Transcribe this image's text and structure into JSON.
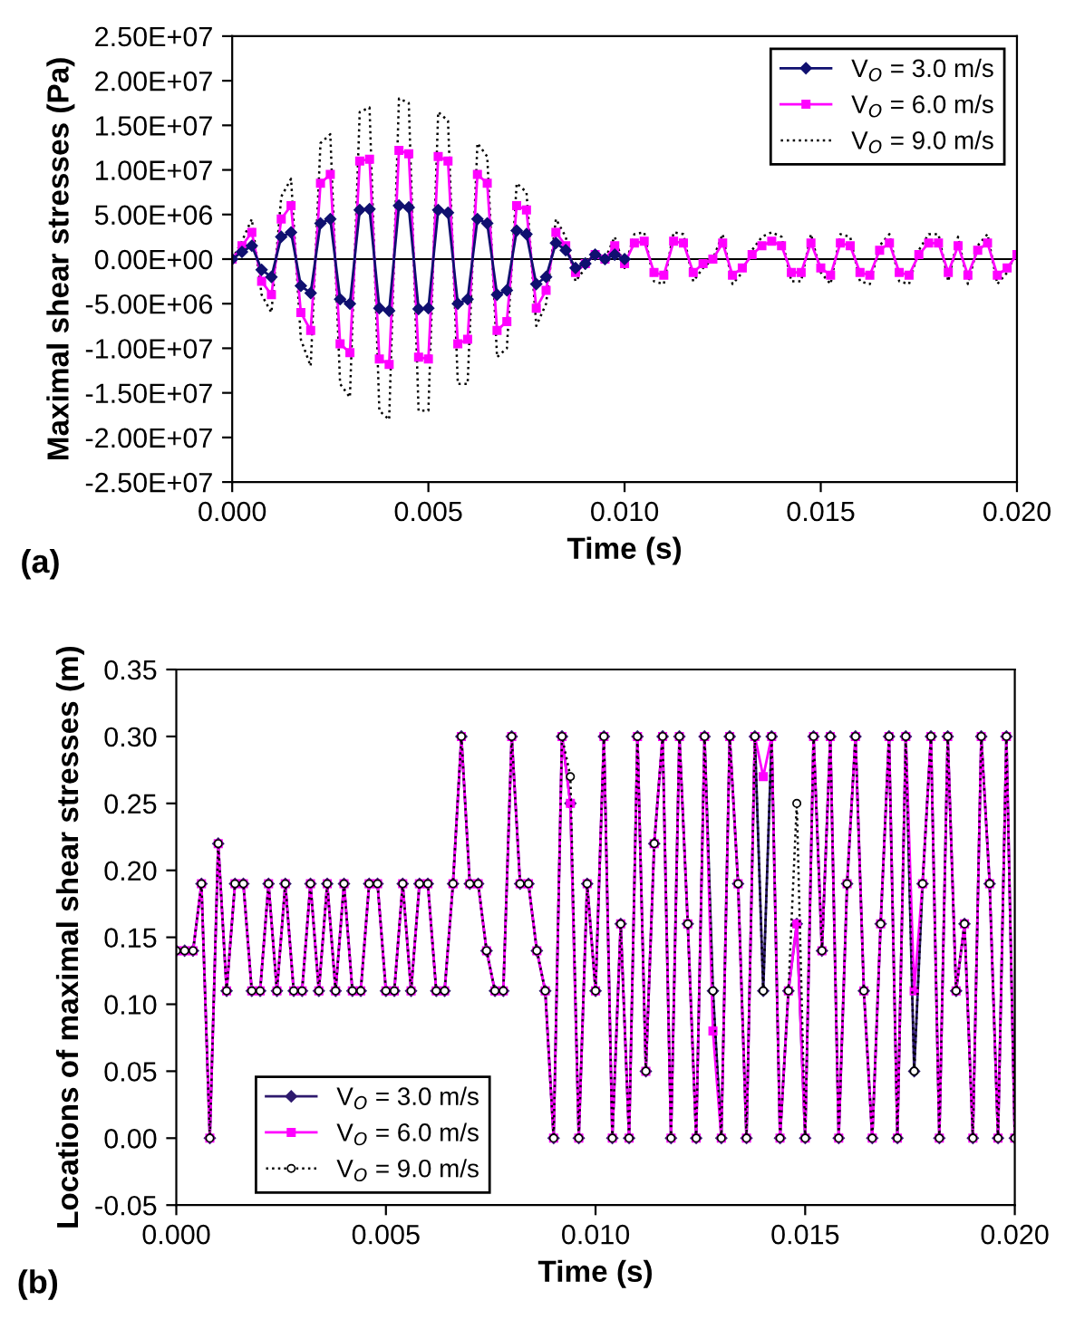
{
  "chart_data": [
    {
      "type": "line",
      "xlabel": "Time (s)",
      "ylabel": "Maximal shear stresses (Pa)",
      "annotations": [
        "(a)"
      ],
      "legend": "top right",
      "grid": false,
      "ref_lines": [
        {
          "axis": "y",
          "value": 0,
          "color": "#000000",
          "line_style": "solid"
        }
      ],
      "xlim": [
        0,
        0.02
      ],
      "xticks": [
        {
          "value": 0,
          "label": "0.000"
        },
        {
          "value": 0.005,
          "label": "0.005"
        },
        {
          "value": 0.01,
          "label": "0.010"
        },
        {
          "value": 0.015,
          "label": "0.015"
        },
        {
          "value": 0.02,
          "label": "0.020"
        }
      ],
      "ylim": [
        -25000000,
        25000000
      ],
      "yticks": [
        {
          "value": 25000000,
          "label": "2.50E+07"
        },
        {
          "value": 20000000,
          "label": "2.00E+07"
        },
        {
          "value": 15000000,
          "label": "1.50E+07"
        },
        {
          "value": 10000000,
          "label": "1.00E+07"
        },
        {
          "value": 5000000,
          "label": "5.00E+06"
        },
        {
          "value": 0,
          "label": "0.00E+00"
        },
        {
          "value": -5000000,
          "label": "-5.00E+06"
        },
        {
          "value": -10000000,
          "label": "-1.00E+07"
        },
        {
          "value": -15000000,
          "label": "-1.50E+07"
        },
        {
          "value": -20000000,
          "label": "-2.00E+07"
        },
        {
          "value": -25000000,
          "label": "-2.50E+07"
        }
      ],
      "x": [
        0,
        0.00025,
        0.0005,
        0.00075,
        0.001,
        0.00125,
        0.0015,
        0.00175,
        0.002,
        0.00225,
        0.0025,
        0.00275,
        0.003,
        0.00325,
        0.0035,
        0.00375,
        0.004,
        0.00425,
        0.0045,
        0.00475,
        0.005,
        0.00525,
        0.0055,
        0.00575,
        0.006,
        0.00625,
        0.0065,
        0.00675,
        0.007,
        0.00725,
        0.0075,
        0.00775,
        0.008,
        0.00825,
        0.0085,
        0.00875,
        0.009,
        0.00925,
        0.0095,
        0.00975,
        0.01,
        0.01025,
        0.0105,
        0.01075,
        0.011,
        0.01125,
        0.0115,
        0.01175,
        0.012,
        0.01225,
        0.0125,
        0.01275,
        0.013,
        0.01325,
        0.0135,
        0.01375,
        0.014,
        0.01425,
        0.0145,
        0.01475,
        0.015,
        0.01525,
        0.0155,
        0.01575,
        0.016,
        0.01625,
        0.0165,
        0.01675,
        0.017,
        0.01725,
        0.0175,
        0.01775,
        0.018,
        0.01825,
        0.0185,
        0.01875,
        0.019,
        0.01925,
        0.0195,
        0.01975,
        0.02
      ],
      "series": [
        {
          "name": "V$_{O}$ = 9.0 m/s",
          "color": "#000000",
          "line_style": "dotted",
          "marker": "none",
          "values": [
            0,
            2000000,
            4500000,
            -4000000,
            -6000000,
            7000000,
            9000000,
            -9000000,
            -12000000,
            13000000,
            14000000,
            -14000000,
            -15500000,
            16500000,
            17000000,
            -17000000,
            -18000000,
            18000000,
            17500000,
            -17000000,
            -17000000,
            16500000,
            15500000,
            -14000000,
            -14000000,
            13000000,
            11500000,
            -11000000,
            -10000000,
            8500000,
            7500000,
            -7500000,
            -5000000,
            4500000,
            2500000,
            -2500000,
            -1000000,
            1000000,
            0,
            2500000,
            -1000000,
            2800000,
            3000000,
            -2500000,
            -2800000,
            3000000,
            2800000,
            -2500000,
            -1000000,
            0,
            2800000,
            -2800000,
            -1500000,
            1000000,
            2500000,
            3000000,
            2500000,
            -2500000,
            -2500000,
            2800000,
            -1500000,
            -2800000,
            2800000,
            2500000,
            -2500000,
            -2800000,
            1500000,
            2800000,
            -2500000,
            -2800000,
            1000000,
            2800000,
            2800000,
            -2500000,
            2500000,
            -2800000,
            1500000,
            2800000,
            -2800000,
            -1500000,
            1000000
          ]
        },
        {
          "name": "V$_{O}$ = 6.0 m/s",
          "color": "#ff00ff",
          "line_style": "solid",
          "marker": "square",
          "values": [
            0,
            1500000,
            3000000,
            -2500000,
            -4000000,
            4500000,
            6000000,
            -6000000,
            -8000000,
            8500000,
            9500000,
            -9500000,
            -10500000,
            11000000,
            11200000,
            -11200000,
            -11800000,
            12200000,
            11800000,
            -11000000,
            -11200000,
            11500000,
            11000000,
            -9500000,
            -9000000,
            9500000,
            8500000,
            -8000000,
            -7000000,
            6000000,
            5500000,
            -5500000,
            -3500000,
            3000000,
            1500000,
            -1500000,
            -500000,
            500000,
            0,
            1500000,
            -500000,
            1800000,
            2000000,
            -1500000,
            -1800000,
            2000000,
            1800000,
            -1500000,
            -500000,
            0,
            1800000,
            -1800000,
            -1000000,
            500000,
            1500000,
            2000000,
            1500000,
            -1500000,
            -1500000,
            1800000,
            -1000000,
            -1800000,
            1800000,
            1500000,
            -1500000,
            -1800000,
            1000000,
            1800000,
            -1500000,
            -1800000,
            500000,
            1800000,
            1800000,
            -1500000,
            1500000,
            -1800000,
            1000000,
            1800000,
            -1800000,
            -1000000,
            500000
          ]
        },
        {
          "name": "V$_{O}$ = 3.0 m/s",
          "color": "#101070",
          "line_style": "solid",
          "marker": "diamond",
          "x": [
            0,
            0.00025,
            0.0005,
            0.00075,
            0.001,
            0.00125,
            0.0015,
            0.00175,
            0.002,
            0.00225,
            0.0025,
            0.00275,
            0.003,
            0.00325,
            0.0035,
            0.00375,
            0.004,
            0.00425,
            0.0045,
            0.00475,
            0.005,
            0.00525,
            0.0055,
            0.00575,
            0.006,
            0.00625,
            0.0065,
            0.00675,
            0.007,
            0.00725,
            0.0075,
            0.00775,
            0.008,
            0.00825,
            0.0085,
            0.00875,
            0.009,
            0.00925,
            0.0095,
            0.00975,
            0.01
          ],
          "values": [
            0,
            800000,
            1500000,
            -1200000,
            -2000000,
            2500000,
            3000000,
            -3000000,
            -3800000,
            4000000,
            4500000,
            -4500000,
            -5000000,
            5500000,
            5600000,
            -5500000,
            -5800000,
            6000000,
            5800000,
            -5600000,
            -5500000,
            5500000,
            5200000,
            -5000000,
            -4500000,
            4500000,
            4000000,
            -4000000,
            -3500000,
            3200000,
            2800000,
            -2800000,
            -2000000,
            1800000,
            1000000,
            -1000000,
            -500000,
            500000,
            0,
            500000,
            0
          ]
        }
      ]
    },
    {
      "type": "line",
      "xlabel": "Time (s)",
      "ylabel": "Locations of maximal shear stresses (m)",
      "annotations": [
        "(b)"
      ],
      "legend": "bottom left",
      "grid": false,
      "xlim": [
        0,
        0.02
      ],
      "xticks": [
        {
          "value": 0,
          "label": "0.000"
        },
        {
          "value": 0.005,
          "label": "0.005"
        },
        {
          "value": 0.01,
          "label": "0.010"
        },
        {
          "value": 0.015,
          "label": "0.015"
        },
        {
          "value": 0.02,
          "label": "0.020"
        }
      ],
      "ylim": [
        -0.05,
        0.35
      ],
      "yticks": [
        {
          "value": -0.05,
          "label": "-0.05"
        },
        {
          "value": 0,
          "label": "0.00"
        },
        {
          "value": 0.05,
          "label": "0.05"
        },
        {
          "value": 0.1,
          "label": "0.10"
        },
        {
          "value": 0.15,
          "label": "0.15"
        },
        {
          "value": 0.2,
          "label": "0.20"
        },
        {
          "value": 0.25,
          "label": "0.25"
        },
        {
          "value": 0.3,
          "label": "0.30"
        },
        {
          "value": 0.35,
          "label": "0.35"
        }
      ],
      "x": [
        0,
        0.0002,
        0.0004,
        0.0006,
        0.0008,
        0.001,
        0.0012,
        0.0014,
        0.0016,
        0.0018,
        0.002,
        0.0022,
        0.0024,
        0.0026,
        0.0028,
        0.003,
        0.0032,
        0.0034,
        0.0036,
        0.0038,
        0.004,
        0.0042,
        0.0044,
        0.0046,
        0.0048,
        0.005,
        0.0052,
        0.0054,
        0.0056,
        0.0058,
        0.006,
        0.0062,
        0.0064,
        0.0066,
        0.0068,
        0.007,
        0.0072,
        0.0074,
        0.0076,
        0.0078,
        0.008,
        0.0082,
        0.0084,
        0.0086,
        0.0088,
        0.009,
        0.0092,
        0.0094,
        0.0096,
        0.0098,
        0.01,
        0.0102,
        0.0104,
        0.0106,
        0.0108,
        0.011,
        0.0112,
        0.0114,
        0.0116,
        0.0118,
        0.012,
        0.0122,
        0.0124,
        0.0126,
        0.0128,
        0.013,
        0.0132,
        0.0134,
        0.0136,
        0.0138,
        0.014,
        0.0142,
        0.0144,
        0.0146,
        0.0148,
        0.015,
        0.0152,
        0.0154,
        0.0156,
        0.0158,
        0.016,
        0.0162,
        0.0164,
        0.0166,
        0.0168,
        0.017,
        0.0172,
        0.0174,
        0.0176,
        0.0178,
        0.018,
        0.0182,
        0.0184,
        0.0186,
        0.0188,
        0.019,
        0.0192,
        0.0194,
        0.0196,
        0.0198,
        0.02
      ],
      "series": [
        {
          "name": "V$_{O}$ = 3.0 m/s",
          "color": "#2e1a6e",
          "line_style": "solid",
          "marker": "diamond",
          "values": [
            0.14,
            0.14,
            0.14,
            0.19,
            0.0,
            0.22,
            0.11,
            0.19,
            0.19,
            0.11,
            0.11,
            0.19,
            0.11,
            0.19,
            0.11,
            0.11,
            0.19,
            0.11,
            0.19,
            0.11,
            0.19,
            0.11,
            0.11,
            0.19,
            0.19,
            0.11,
            0.11,
            0.19,
            0.11,
            0.19,
            0.19,
            0.11,
            0.11,
            0.19,
            0.3,
            0.19,
            0.19,
            0.14,
            0.11,
            0.11,
            0.3,
            0.19,
            0.19,
            0.14,
            0.11,
            0.0,
            0.3,
            0.25,
            0.0,
            0.19,
            0.11,
            0.3,
            0.0,
            0.16,
            0.0,
            0.3,
            0.05,
            0.22,
            0.3,
            0.0,
            0.3,
            0.16,
            0.0,
            0.3,
            0.11,
            0.0,
            0.3,
            0.19,
            0.0,
            0.3,
            0.11,
            0.3,
            0.0,
            0.11,
            0.16,
            0.0,
            0.3,
            0.14,
            0.3,
            0.0,
            0.19,
            0.3,
            0.11,
            0.0,
            0.16,
            0.3,
            0.0,
            0.3,
            0.05,
            0.19,
            0.3,
            0.0,
            0.3,
            0.11,
            0.16,
            0.0,
            0.3,
            0.19,
            0.0,
            0.3,
            0.0
          ]
        },
        {
          "name": "V$_{O}$ = 6.0 m/s",
          "color": "#ff00ff",
          "line_style": "solid",
          "marker": "square",
          "values": [
            0.14,
            0.14,
            0.14,
            0.19,
            0.0,
            0.22,
            0.11,
            0.19,
            0.19,
            0.11,
            0.11,
            0.19,
            0.11,
            0.19,
            0.11,
            0.11,
            0.19,
            0.11,
            0.19,
            0.11,
            0.19,
            0.11,
            0.11,
            0.19,
            0.19,
            0.11,
            0.11,
            0.19,
            0.11,
            0.19,
            0.19,
            0.11,
            0.11,
            0.19,
            0.3,
            0.19,
            0.19,
            0.14,
            0.11,
            0.11,
            0.3,
            0.19,
            0.19,
            0.14,
            0.11,
            0.0,
            0.3,
            0.25,
            0.0,
            0.19,
            0.11,
            0.3,
            0.0,
            0.16,
            0.0,
            0.3,
            0.05,
            0.22,
            0.3,
            0.0,
            0.3,
            0.16,
            0.0,
            0.3,
            0.08,
            0.0,
            0.3,
            0.19,
            0.0,
            0.3,
            0.27,
            0.3,
            0.0,
            0.11,
            0.16,
            0.0,
            0.3,
            0.14,
            0.3,
            0.0,
            0.19,
            0.3,
            0.11,
            0.0,
            0.16,
            0.3,
            0.0,
            0.3,
            0.11,
            0.19,
            0.3,
            0.0,
            0.3,
            0.11,
            0.16,
            0.0,
            0.3,
            0.19,
            0.0,
            0.3,
            0.0
          ]
        },
        {
          "name": "V$_{O}$ = 9.0 m/s",
          "color": "#000000",
          "line_style": "dotted",
          "marker": "circle",
          "values": [
            0.14,
            0.14,
            0.14,
            0.19,
            0.0,
            0.22,
            0.11,
            0.19,
            0.19,
            0.11,
            0.11,
            0.19,
            0.11,
            0.19,
            0.11,
            0.11,
            0.19,
            0.11,
            0.19,
            0.11,
            0.19,
            0.11,
            0.11,
            0.19,
            0.19,
            0.11,
            0.11,
            0.19,
            0.11,
            0.19,
            0.19,
            0.11,
            0.11,
            0.19,
            0.3,
            0.19,
            0.19,
            0.14,
            0.11,
            0.11,
            0.3,
            0.19,
            0.19,
            0.14,
            0.11,
            0.0,
            0.3,
            0.27,
            0.0,
            0.19,
            0.11,
            0.3,
            0.0,
            0.16,
            0.0,
            0.3,
            0.05,
            0.22,
            0.3,
            0.0,
            0.3,
            0.16,
            0.0,
            0.3,
            0.11,
            0.0,
            0.3,
            0.19,
            0.0,
            0.3,
            0.11,
            0.3,
            0.0,
            0.11,
            0.25,
            0.0,
            0.3,
            0.14,
            0.3,
            0.0,
            0.19,
            0.3,
            0.11,
            0.0,
            0.16,
            0.3,
            0.0,
            0.3,
            0.05,
            0.19,
            0.3,
            0.0,
            0.3,
            0.11,
            0.16,
            0.0,
            0.3,
            0.19,
            0.0,
            0.3,
            0.0
          ]
        }
      ]
    }
  ]
}
